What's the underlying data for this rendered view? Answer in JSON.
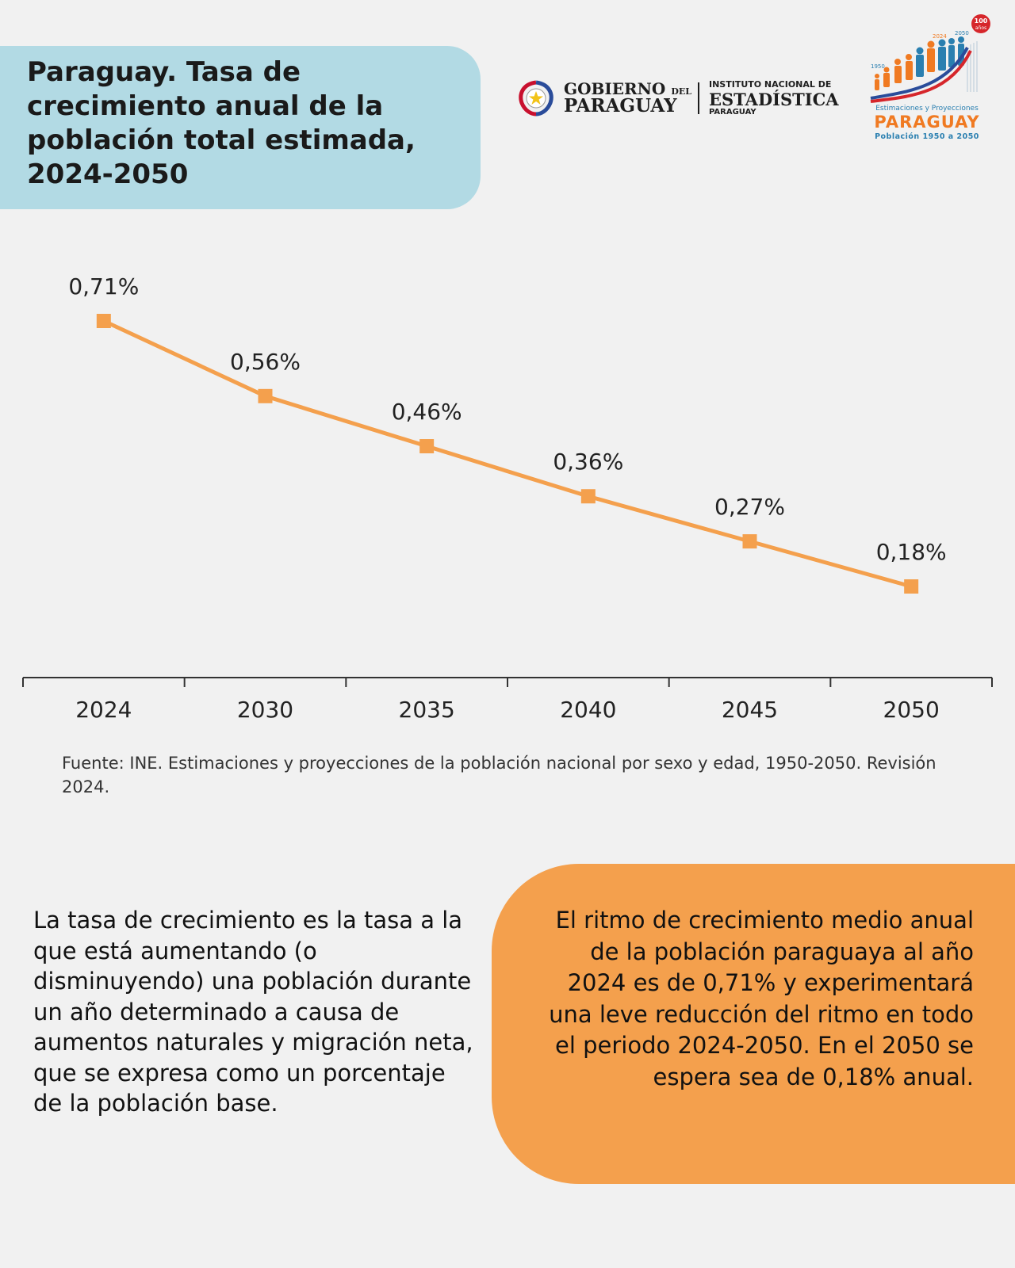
{
  "header": {
    "title": "Paraguay. Tasa de crecimiento anual de la población total estimada, 2024-2050"
  },
  "logos": {
    "gov_line1": "GOBIERNO",
    "gov_line1_small": "DEL",
    "gov_line2": "PARAGUAY",
    "ine_line1": "INSTITUTO NACIONAL DE",
    "ine_line2": "ESTADÍSTICA",
    "ine_line3": "PARAGUAY",
    "proj_badge_top": "100",
    "proj_badge_bottom": "años",
    "proj_year_1950": "1950",
    "proj_year_2024": "2024",
    "proj_year_2050": "2050",
    "proj_sub1": "Estimaciones y Proyecciones",
    "proj_sub2": "PARAGUAY",
    "proj_sub3": "Población 1950 a 2050"
  },
  "chart_data": {
    "type": "line",
    "categories": [
      "2024",
      "2030",
      "2035",
      "2040",
      "2045",
      "2050"
    ],
    "values": [
      0.71,
      0.56,
      0.46,
      0.36,
      0.27,
      0.18
    ],
    "labels": [
      "0,71%",
      "0,56%",
      "0,46%",
      "0,36%",
      "0,27%",
      "0,18%"
    ],
    "title": "",
    "xlabel": "",
    "ylabel": "",
    "ylim": [
      -0.5,
      0.9
    ],
    "grid": false,
    "marker": "square",
    "color": "#f4a04d"
  },
  "source": "Fuente: INE. Estimaciones y proyecciones de la población nacional por sexo y edad, 1950-2050. Revisión 2024.",
  "definition": "La tasa de crecimiento es la tasa a la que está aumentando (o disminuyendo) una población durante un año determinado a causa de aumentos naturales y migración neta, que se expresa como un porcentaje de la población base.",
  "highlight": "El ritmo de crecimiento medio anual de la población paraguaya al año 2024 es de 0,71% y experimentará una leve reducción del ritmo en todo el periodo 2024-2050. En el 2050 se espera sea de 0,18% anual.",
  "colors": {
    "title_bg": "#b2dae4",
    "accent": "#f4a04d",
    "background": "#f1f1f1"
  }
}
